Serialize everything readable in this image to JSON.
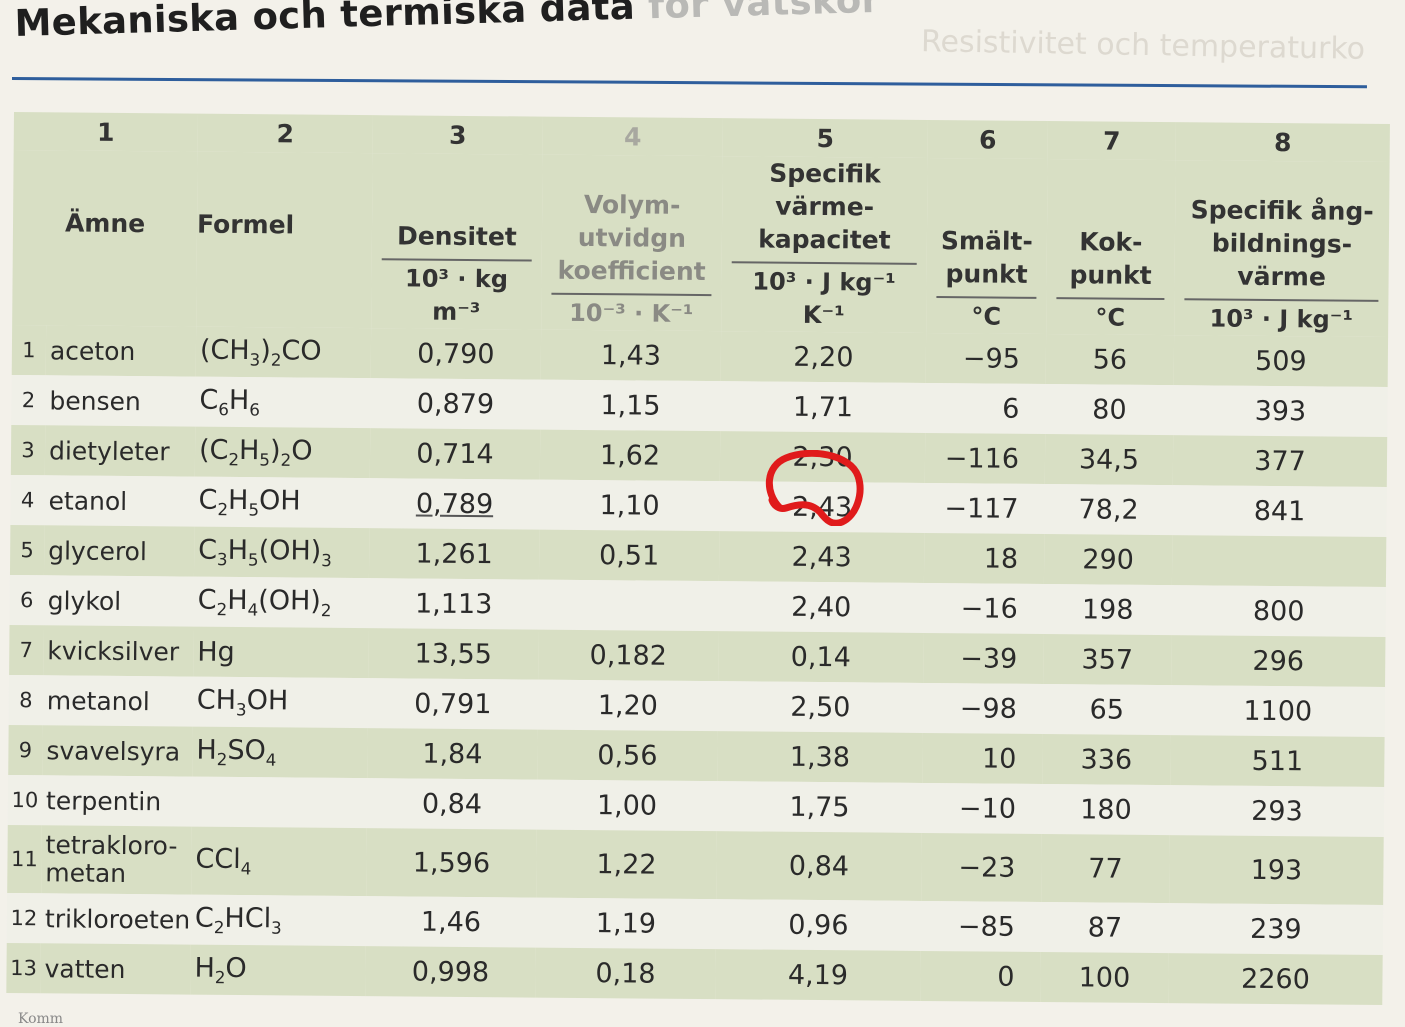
{
  "page": {
    "title_main": "Mekaniska och termiska data ",
    "title_faded": "för vätskor",
    "ghost_text": "Resistivitet och temperaturko",
    "footer_fragment": "Komm"
  },
  "table": {
    "column_numbers": [
      "1",
      "2",
      "3",
      "4",
      "5",
      "6",
      "7",
      "8"
    ],
    "headers": {
      "amne": "Ämne",
      "formel": "Formel",
      "densitet": "Densitet",
      "densitet_unit": "10³ · kg m⁻³",
      "volym": "Volym-\nutvidgn\nkoefficient",
      "volym_unit": "10⁻³ · K⁻¹",
      "specifik": "Specifik\nvärme-\nkapacitet",
      "specifik_unit": "10³ · J kg⁻¹ K⁻¹",
      "smalt": "Smält-\npunkt",
      "smalt_unit": "°C",
      "kok": "Kok-\npunkt",
      "kok_unit": "°C",
      "ang": "Specifik ång-\nbildnings-\nvärme",
      "ang_unit": "10³ · J kg⁻¹"
    },
    "rows": [
      {
        "idx": "1",
        "name": "aceton",
        "formula": "(CH3)2CO",
        "density": "0,790",
        "expansion": "1,43",
        "heat": "2,20",
        "melt": "−95",
        "boil": "56",
        "vap": "509"
      },
      {
        "idx": "2",
        "name": "bensen",
        "formula": "C6H6",
        "density": "0,879",
        "expansion": "1,15",
        "heat": "1,71",
        "melt": "6",
        "boil": "80",
        "vap": "393"
      },
      {
        "idx": "3",
        "name": "dietyleter",
        "formula": "(C2H5)2O",
        "density": "0,714",
        "expansion": "1,62",
        "heat": "2,30",
        "melt": "−116",
        "boil": "34,5",
        "vap": "377"
      },
      {
        "idx": "4",
        "name": "etanol",
        "formula": "C2H5OH",
        "density": "0,789",
        "expansion": "1,10",
        "heat": "2,43",
        "melt": "−117",
        "boil": "78,2",
        "vap": "841"
      },
      {
        "idx": "5",
        "name": "glycerol",
        "formula": "C3H5(OH)3",
        "density": "1,261",
        "expansion": "0,51",
        "heat": "2,43",
        "melt": "18",
        "boil": "290",
        "vap": ""
      },
      {
        "idx": "6",
        "name": "glykol",
        "formula": "C2H4(OH)2",
        "density": "1,113",
        "expansion": "",
        "heat": "2,40",
        "melt": "−16",
        "boil": "198",
        "vap": "800"
      },
      {
        "idx": "7",
        "name": "kvicksilver",
        "formula": "Hg",
        "density": "13,55",
        "expansion": "0,182",
        "heat": "0,14",
        "melt": "−39",
        "boil": "357",
        "vap": "296"
      },
      {
        "idx": "8",
        "name": "metanol",
        "formula": "CH3OH",
        "density": "0,791",
        "expansion": "1,20",
        "heat": "2,50",
        "melt": "−98",
        "boil": "65",
        "vap": "1100"
      },
      {
        "idx": "9",
        "name": "svavelsyra",
        "formula": "H2SO4",
        "density": "1,84",
        "expansion": "0,56",
        "heat": "1,38",
        "melt": "10",
        "boil": "336",
        "vap": "511"
      },
      {
        "idx": "10",
        "name": "terpentin",
        "formula": "",
        "density": "0,84",
        "expansion": "1,00",
        "heat": "1,75",
        "melt": "−10",
        "boil": "180",
        "vap": "293"
      },
      {
        "idx": "11",
        "name": "tetrakloro-\nmetan",
        "formula": "CCl4",
        "density": "1,596",
        "expansion": "1,22",
        "heat": "0,84",
        "melt": "−23",
        "boil": "77",
        "vap": "193"
      },
      {
        "idx": "12",
        "name": "trikloroeten",
        "formula": "C2HCl3",
        "density": "1,46",
        "expansion": "1,19",
        "heat": "0,96",
        "melt": "−85",
        "boil": "87",
        "vap": "239"
      },
      {
        "idx": "13",
        "name": "vatten",
        "formula": "H2O",
        "density": "0,998",
        "expansion": "0,18",
        "heat": "4,19",
        "melt": "0",
        "boil": "100",
        "vap": "2260"
      }
    ]
  },
  "annotations": {
    "circled_row": 3,
    "circle_color": "#e01b1b",
    "underlined_row": 3
  }
}
